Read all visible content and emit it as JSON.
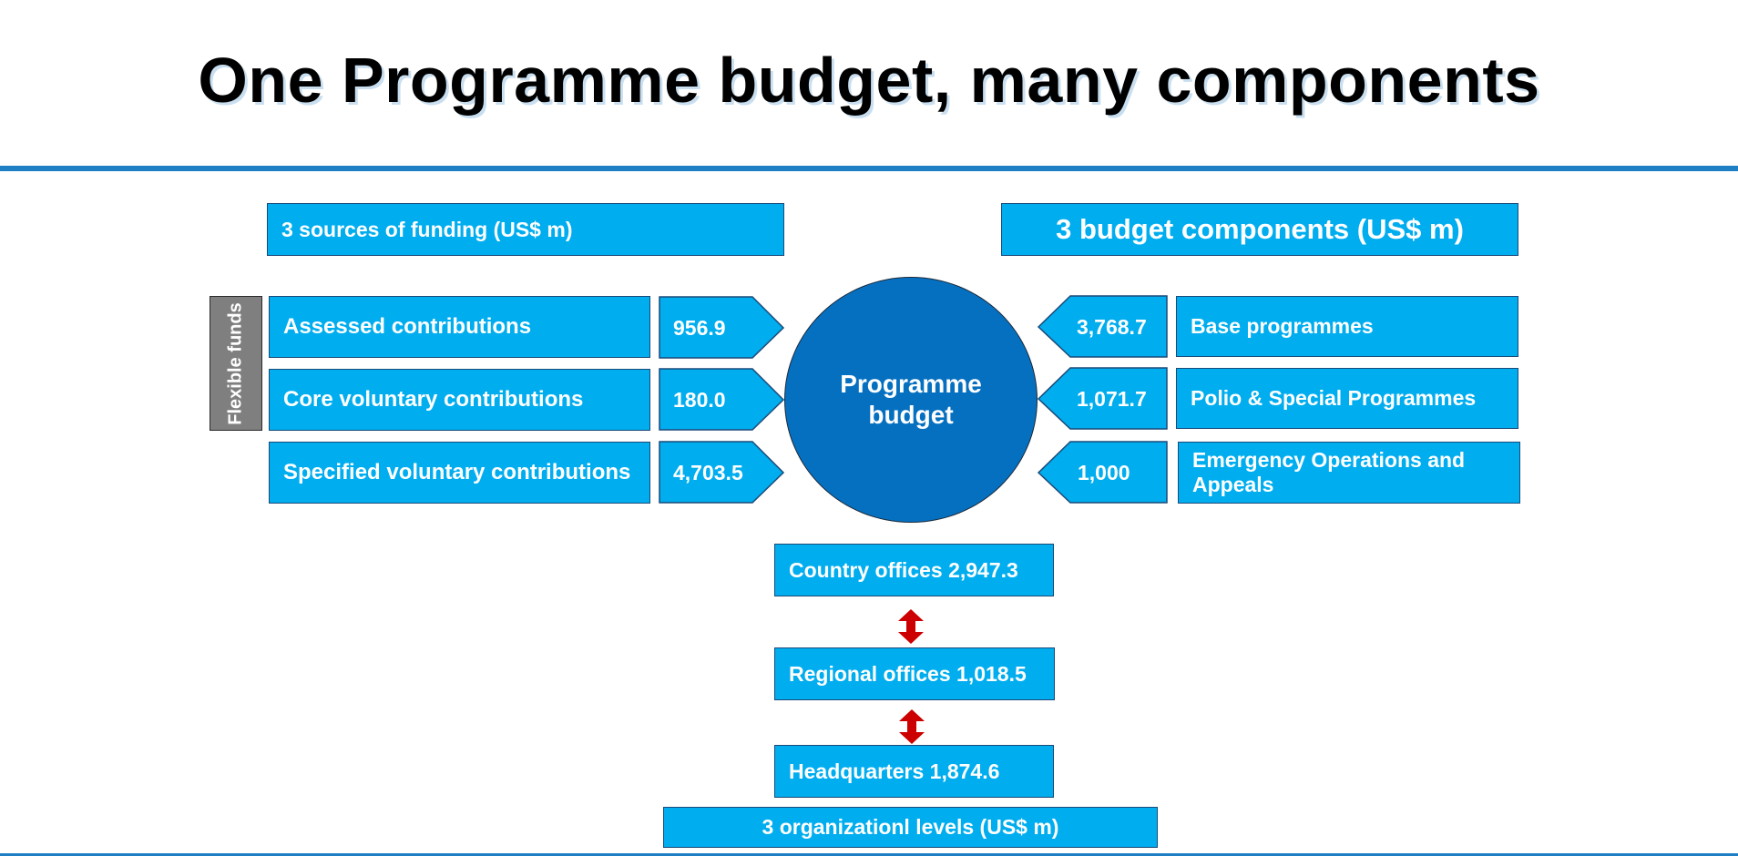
{
  "title": "One Programme budget, many components",
  "funding": {
    "header": "3 sources of funding (US$ m)",
    "flexible_label": "Flexible funds",
    "sources": [
      {
        "label": "Assessed contributions",
        "value": "956.9"
      },
      {
        "label": "Core voluntary contributions",
        "value": "180.0"
      },
      {
        "label": "Specified voluntary contributions",
        "value": "4,703.5"
      }
    ]
  },
  "center": {
    "label": "Programme budget"
  },
  "components": {
    "header": "3 budget components (US$ m)",
    "items": [
      {
        "label": "Base programmes",
        "value": "3,768.7"
      },
      {
        "label": "Polio & Special Programmes",
        "value": "1,071.7"
      },
      {
        "label": "Emergency Operations and Appeals",
        "value": "1,000"
      }
    ]
  },
  "levels": {
    "items": [
      {
        "label": "Country offices 2,947.3"
      },
      {
        "label": "Regional offices 1,018.5"
      },
      {
        "label": "Headquarters 1,874.6"
      }
    ],
    "footer": "3 organizationl levels (US$ m)"
  },
  "colors": {
    "box_fill": "#00adef",
    "circle_fill": "#0670c0",
    "flexible_tab": "#7f7f7f",
    "rule": "#1f7fc5",
    "double_arrow": "#cc0000"
  }
}
